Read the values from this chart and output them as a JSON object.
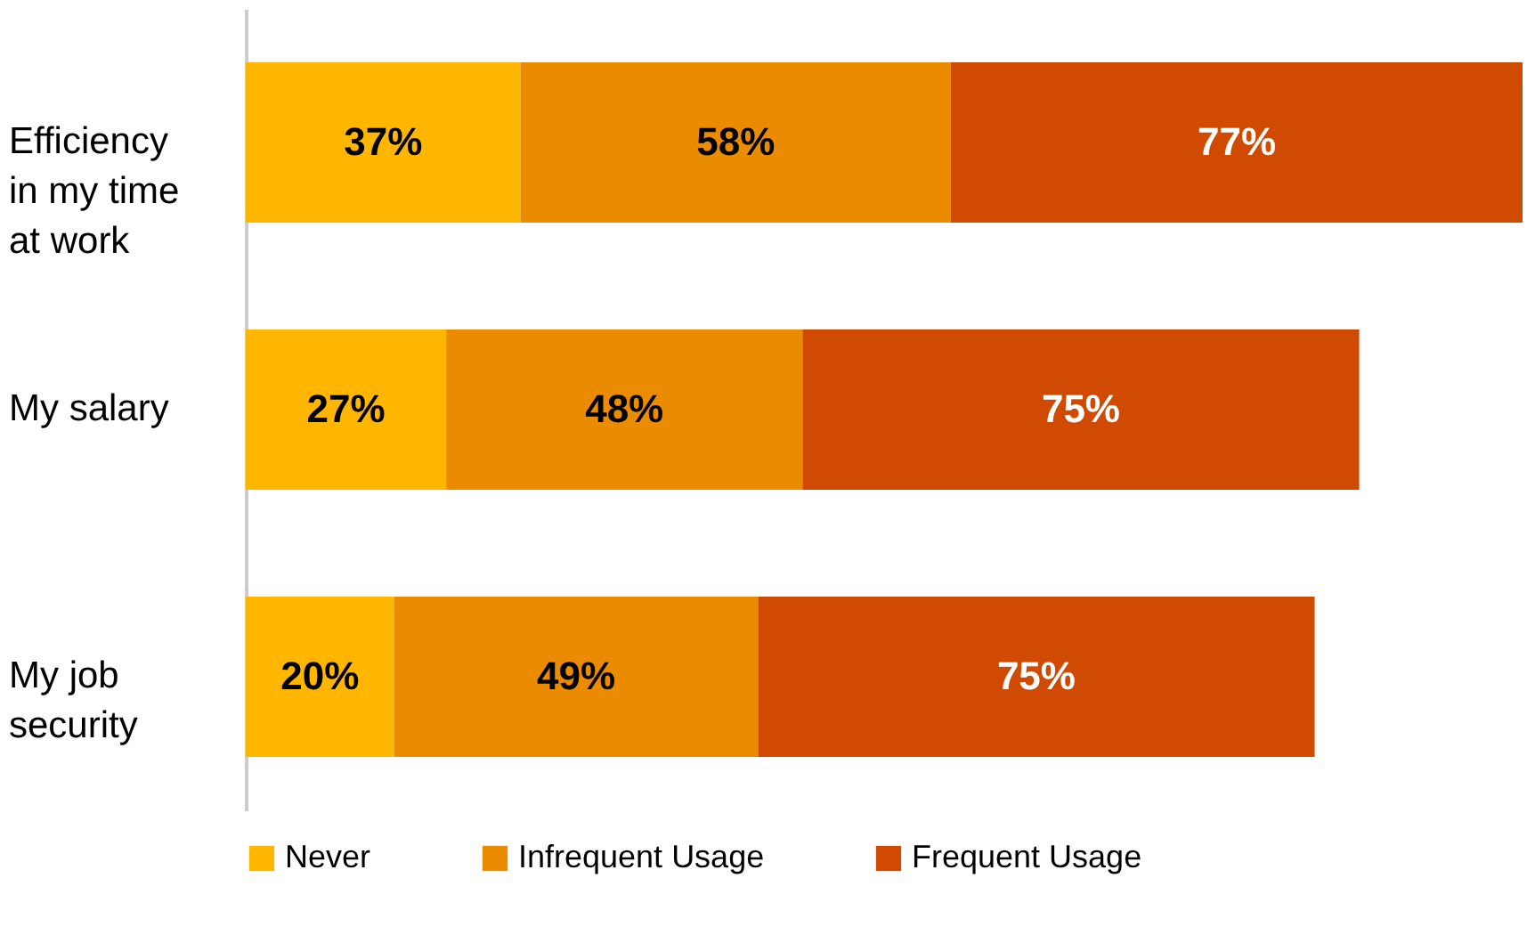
{
  "chart_data": {
    "type": "bar",
    "orientation": "horizontal",
    "stacked": true,
    "legend": "bottom",
    "categories": [
      "Efficiency in my time at work",
      "My salary",
      "My job security"
    ],
    "series": [
      {
        "name": "Never",
        "color": "#ffb600",
        "values": [
          37,
          27,
          20
        ],
        "value_labels": [
          "37%",
          "27%",
          "20%"
        ]
      },
      {
        "name": "Infrequent Usage",
        "color": "#eb8c00",
        "values": [
          58,
          48,
          49
        ],
        "value_labels": [
          "58%",
          "48%",
          "49%"
        ]
      },
      {
        "name": "Frequent Usage",
        "color": "#d04a02",
        "values": [
          77,
          75,
          75
        ],
        "value_labels": [
          "77%",
          "75%",
          "75%"
        ]
      }
    ]
  }
}
